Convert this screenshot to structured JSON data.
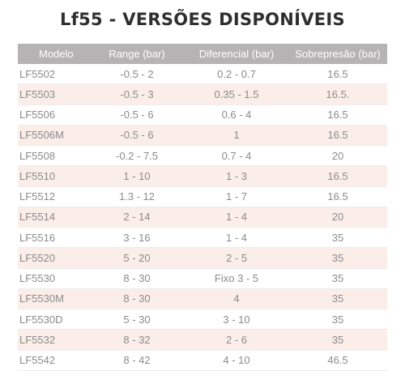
{
  "title": "Lf55 - VERSÕES DISPONÍVEIS",
  "header": {
    "model": "Modelo",
    "range": "Range (bar)",
    "differential": "Diferencial (bar)",
    "overpressure": "Sobrepresão (bar)"
  },
  "rows": [
    {
      "model": "LF5502",
      "range": "-0.5 - 2",
      "differential": "0.2 - 0.7",
      "overpressure": "16.5"
    },
    {
      "model": "LF5503",
      "range": "-0.5 - 3",
      "differential": "0.35 - 1.5",
      "overpressure": "16.5."
    },
    {
      "model": "LF5506",
      "range": "-0.5 - 6",
      "differential": "0.6 - 4",
      "overpressure": "16.5"
    },
    {
      "model": "LF5506M",
      "range": "-0.5 - 6",
      "differential": "1",
      "overpressure": "16.5"
    },
    {
      "model": "LF5508",
      "range": "-0.2 - 7.5",
      "differential": "0.7 - 4",
      "overpressure": "20"
    },
    {
      "model": "LF5510",
      "range": "1 - 10",
      "differential": "1 - 3",
      "overpressure": "16.5"
    },
    {
      "model": "LF5512",
      "range": "1.3 - 12",
      "differential": "1 - 7",
      "overpressure": "16.5"
    },
    {
      "model": "LF5514",
      "range": "2 - 14",
      "differential": "1 - 4",
      "overpressure": "20"
    },
    {
      "model": "LF5516",
      "range": "3 - 16",
      "differential": "1 - 4",
      "overpressure": "35"
    },
    {
      "model": "LF5520",
      "range": "5 - 20",
      "differential": "2 - 5",
      "overpressure": "35"
    },
    {
      "model": "LF5530",
      "range": "8 - 30",
      "differential": "Fixo 3 - 5",
      "overpressure": "35"
    },
    {
      "model": "LF5530M",
      "range": "8 - 30",
      "differential": "4",
      "overpressure": "35"
    },
    {
      "model": "LF5530D",
      "range": "5 - 30",
      "differential": "3 - 10",
      "overpressure": "35"
    },
    {
      "model": "LF5532",
      "range": "8 - 32",
      "differential": "2 - 6",
      "overpressure": "35"
    },
    {
      "model": "LF5542",
      "range": "8 - 42",
      "differential": "4 - 10",
      "overpressure": "46.5"
    }
  ]
}
